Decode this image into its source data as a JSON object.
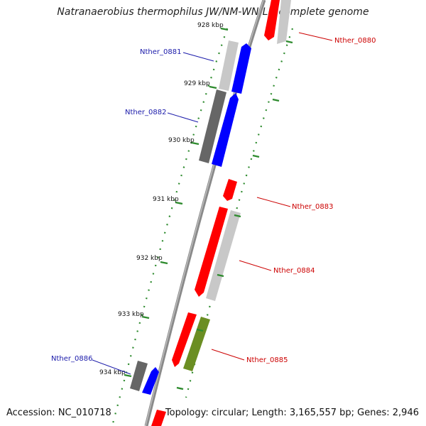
{
  "title": "Natranaerobius thermophilus JW/NM-WN-LF, complete genome",
  "footer": {
    "accession": "Accession: NC_010718",
    "summary": "Topology: circular; Length: 3,165,557 bp; Genes: 2,946"
  },
  "scale_unit": "kbp",
  "ticks": [
    {
      "kbp": 928,
      "label": "928 kbp"
    },
    {
      "kbp": 929,
      "label": "929 kbp"
    },
    {
      "kbp": 930,
      "label": "930 kbp"
    },
    {
      "kbp": 931,
      "label": "931 kbp"
    },
    {
      "kbp": 932,
      "label": "932 kbp"
    },
    {
      "kbp": 933,
      "label": "933 kbp"
    },
    {
      "kbp": 934,
      "label": "934 kbp"
    }
  ],
  "colors": {
    "backbone": "#8a8a8a",
    "ticks": "#2e8b2e",
    "forward_label": "#1a1aaa",
    "reverse_label": "#cc0000",
    "red": "#ff0000",
    "blue": "#0000ff",
    "gray_light": "#c8c8c8",
    "gray_dark": "#666666",
    "olive": "#6b8e23"
  },
  "genes": [
    {
      "label": "Nther_0880",
      "strand": "reverse",
      "color": "red"
    },
    {
      "label": "Nther_0881",
      "strand": "forward",
      "color": "blue"
    },
    {
      "label": "Nther_0882",
      "strand": "forward",
      "color": "blue"
    },
    {
      "label": "Nther_0883",
      "strand": "reverse",
      "color": "red"
    },
    {
      "label": "Nther_0884",
      "strand": "reverse",
      "color": "red"
    },
    {
      "label": "Nther_0885",
      "strand": "reverse",
      "color": "red"
    },
    {
      "label": "Nther_0886",
      "strand": "forward",
      "color": "blue"
    }
  ]
}
